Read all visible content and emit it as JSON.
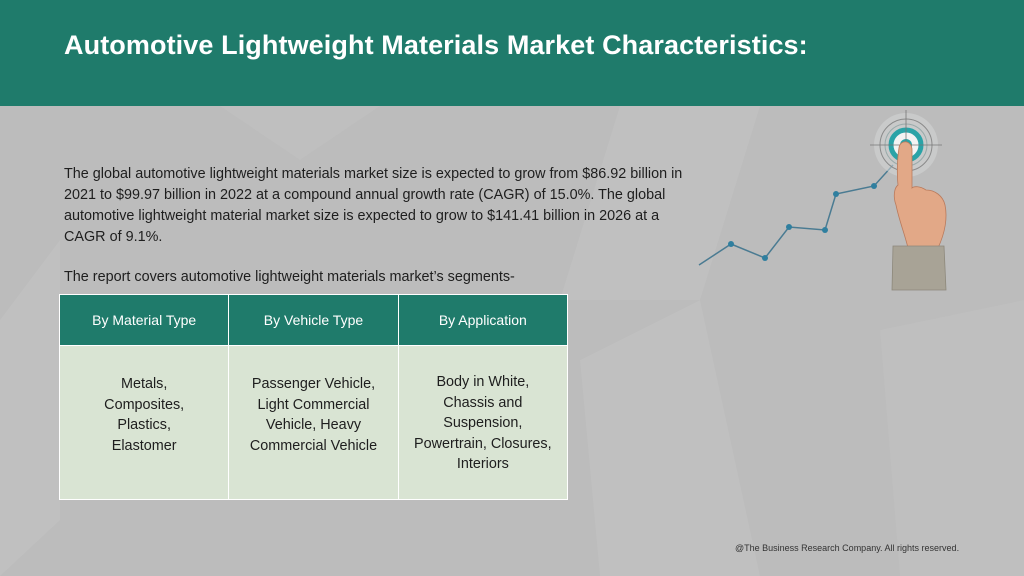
{
  "header": {
    "title": "Automotive Lightweight Materials Market Characteristics:"
  },
  "intro": {
    "text": "The global automotive lightweight materials market size is expected to grow from $86.92 billion in 2021 to $99.97 billion in 2022 at a compound annual growth rate (CAGR) of 15.0%. The global automotive lightweight material market size is expected to grow to $141.41 billion in 2026 at a CAGR of 9.1%."
  },
  "segments_intro": "The report covers automotive lightweight materials market’s segments-",
  "table": {
    "headers": [
      "By Material Type",
      "By Vehicle Type",
      "By Application"
    ],
    "cells": [
      "Metals,\nComposites,\nPlastics,\nElastomer",
      "Passenger Vehicle,\nLight Commercial\nVehicle, Heavy\nCommercial Vehicle",
      "Body in White,\nChassis and\nSuspension,\nPowertrain, Closures,\nInteriors"
    ]
  },
  "colors": {
    "header_bg": "#1f7b6b",
    "table_header_bg": "#1f7b6b",
    "table_cell_bg": "#d9e4d3",
    "page_bg": "#bcbcbc",
    "graph_line": "#4a7b92"
  },
  "footer": {
    "copyright": "@The Business Research Company. All rights reserved."
  }
}
